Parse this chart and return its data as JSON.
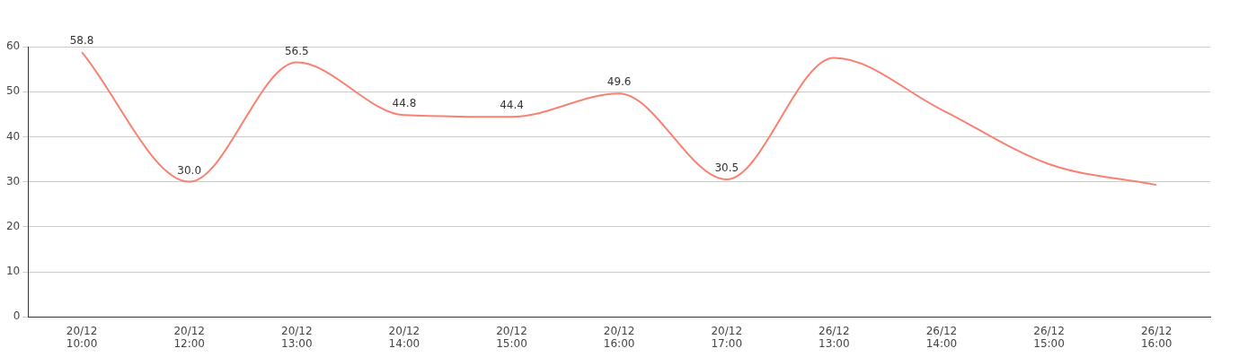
{
  "chart_data": {
    "type": "line",
    "categories": [
      "20/12 10:00",
      "20/12 12:00",
      "20/12 13:00",
      "20/12 14:00",
      "20/12 15:00",
      "20/12 16:00",
      "20/12 17:00",
      "26/12 13:00",
      "26/12 14:00",
      "26/12 15:00",
      "26/12 16:00"
    ],
    "series": [
      {
        "color": "#fa8072",
        "values": [
          58.8,
          30.0,
          56.5,
          44.8,
          44.4,
          49.6,
          30.5,
          57.5,
          46.0,
          33.9,
          29.3
        ],
        "value_labels": [
          "58.8",
          "30.0",
          "56.5",
          "44.8",
          "44.4",
          "49.6",
          "30.5",
          null,
          null,
          null,
          null
        ]
      }
    ],
    "ylim": [
      0,
      60
    ],
    "yticks": [
      0,
      10,
      20,
      30,
      40,
      50,
      60
    ],
    "grid": "y",
    "legend": false,
    "marker": "none",
    "line_style": "solid"
  }
}
